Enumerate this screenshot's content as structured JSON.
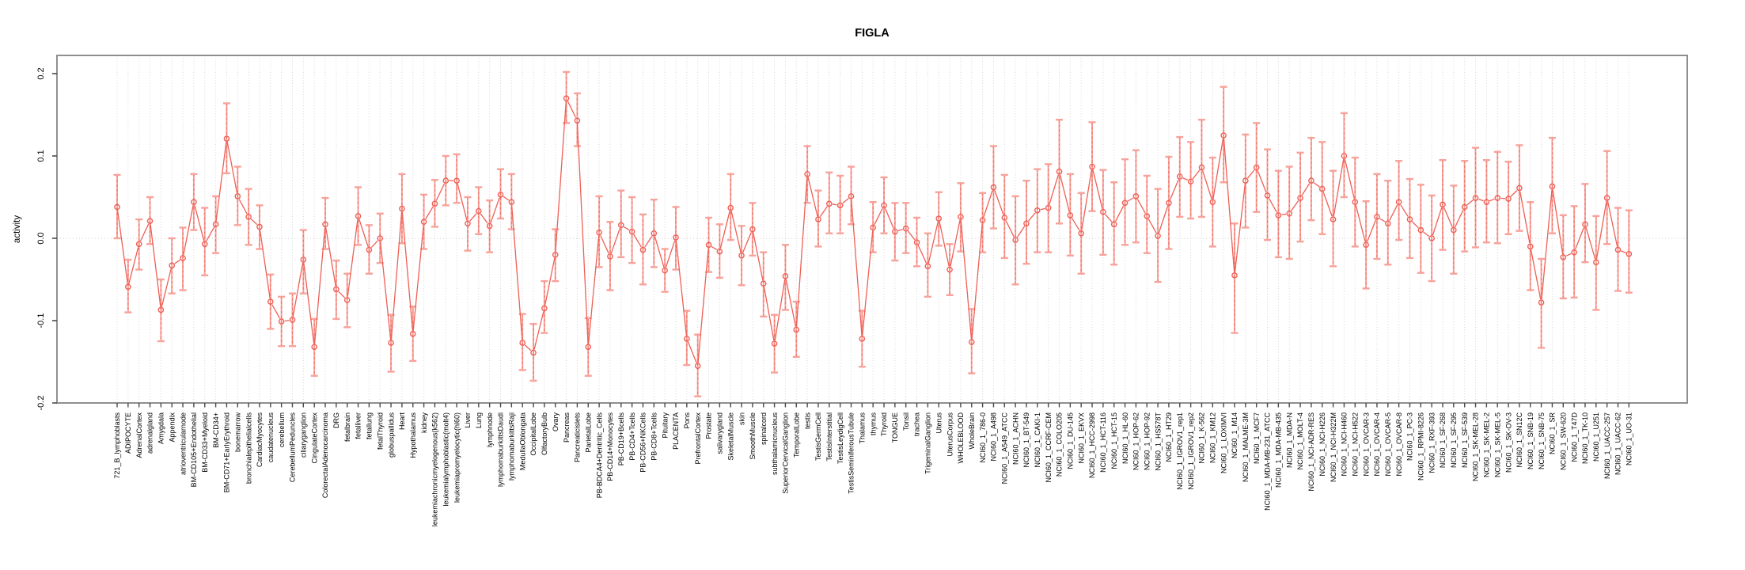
{
  "chart_data": {
    "type": "line",
    "subtype": "points-with-error-bars",
    "title": "FIGLA",
    "xlabel": "",
    "ylabel": "activity",
    "ylim": [
      -0.2,
      0.2
    ],
    "yticks": [
      0.2,
      0.1,
      0.0,
      -0.1,
      -0.2
    ],
    "ytick_labels": [
      "0.2",
      "0.1",
      "0.0",
      "-0.1",
      "-0.2"
    ],
    "grid": {
      "vertical_dotted_per_category": true,
      "zero_dotted_line": true
    },
    "legend": null,
    "marker": "open-circle",
    "colors": {
      "series": "#ee5f55",
      "errorbar": "#f7a29a",
      "box": "#8f8f8f",
      "tick": "#4a4a4a",
      "grid": "#d6d6d6",
      "text": "#000000"
    },
    "categories": [
      "721_B_lymphoblasts",
      "ADIPOCYTE",
      "AdrenalCortex",
      "adrenalgland",
      "Amygdala",
      "Appendix",
      "atrioventricularnode",
      "BM-CD105+Endothelial",
      "BM-CD33+Myeloid",
      "BM-CD34+",
      "BM-CD71+EarlyErythroid",
      "bonemarrow",
      "bronchialepithelialcells",
      "CardiacMyocytes",
      "caudatenucleus",
      "cerebellum",
      "CerebellumPeduncles",
      "ciliaryganglion",
      "CingulateCortex",
      "ColorectalAdenocarcinoma",
      "DRG",
      "fetalbrain",
      "fetalliver",
      "fetallung",
      "fetalThyroid",
      "globuspallidus",
      "Heart",
      "Hypothalamus",
      "kidney",
      "leukemiachronicmyelogenous(k562)",
      "leukemialymphoblastic(molt4)",
      "leukemiapromyelocytic(hl60)",
      "Liver",
      "Lung",
      "lymphnode",
      "lymphomaburkittsDaudi",
      "lymphomaburkittsRaji",
      "MedullaOblongata",
      "OccipitalLobe",
      "OlfactoryBulb",
      "Ovary",
      "Pancreas",
      "Pancreaticislets",
      "ParietalLobe",
      "PB-BDCA4+Dentritic_Cells",
      "PB-CD14+Monocytes",
      "PB-CD19+Bcells",
      "PB-CD4+Tcells",
      "PB-CD56+NKCells",
      "PB-CD8+Tcells",
      "Pituitary",
      "PLACENTA",
      "Pons",
      "PrefrontalCortex",
      "Prostate",
      "salivarygland",
      "SkeletalMuscle",
      "skin",
      "SmoothMuscle",
      "spinalcord",
      "subthalamicnucleus",
      "SuperiorCervicalGanglion",
      "TemporalLobe",
      "testis",
      "TestisGermCell",
      "TestisInterstitial",
      "TestisLeydigCell",
      "TestisSeminiferousTubule",
      "Thalamus",
      "thymus",
      "Thyroid",
      "TONGUE",
      "Tonsil",
      "trachea",
      "TrigeminalGanglion",
      "Uterus",
      "UterusCorpus",
      "WHOLEBLOOD",
      "WholeBrain",
      "NCI60_1_786-0",
      "NCI60_1_A498",
      "NCI60_1_A549_ATCC",
      "NCI60_1_ACHN",
      "NCI60_1_BT-549",
      "NCI60_1_CAKI-1",
      "NCI60_1_CCRF-CEM",
      "NCI60_1_COLO205",
      "NCI60_1_DU-145",
      "NCI60_1_EKVX",
      "NCI60_1_HCC-2998",
      "NCI60_1_HCT-116",
      "NCI60_1_HCT-15",
      "NCI60_1_HL-60",
      "NCI60_1_HOP-62",
      "NCI60_1_HOP-92",
      "NCI60_1_HS578T",
      "NCI60_1_HT29",
      "NCI60_1_IGROV1_rep1",
      "NCI60_1_IGROV1_rep2",
      "NCI60_1_K-562",
      "NCI60_1_KM12",
      "NCI60_1_LOXIMVI",
      "NCI60_1_M14",
      "NCI60_1_MALME-3M",
      "NCI60_1_MCF7",
      "NCI60_1_MDA-MB-231_ATCC",
      "NCI60_1_MDA-MB-435",
      "NCI60_1_MDA-N",
      "NCI60_1_MOLT-4",
      "NCI60_1_NCI-ADR-RES",
      "NCI60_1_NCI-H226",
      "NCI60_1_NCI-H322M",
      "NCI60_1_NCI-H460",
      "NCI60_1_NCI-H522",
      "NCI60_1_OVCAR-3",
      "NCI60_1_OVCAR-4",
      "NCI60_1_OVCAR-5",
      "NCI60_1_OVCAR-8",
      "NCI60_1_PC-3",
      "NCI60_1_RPMI-8226",
      "NCI60_1_RXF-393",
      "NCI60_1_SF-268",
      "NCI60_1_SF-295",
      "NCI60_1_SF-539",
      "NCI60_1_SK-MEL-28",
      "NCI60_1_SK-MEL-2",
      "NCI60_1_SK-MEL-5",
      "NCI60_1_SK-OV-3",
      "NCI60_1_SN12C",
      "NCI60_1_SNB-19",
      "NCI60_1_SNB-75",
      "NCI60_1_SR",
      "NCI60_1_SW-620",
      "NCI60_1_T47D",
      "NCI60_1_TK-10",
      "NCI60_1_U251",
      "NCI60_1_UACC-257",
      "NCI60_1_UACC-62",
      "NCI60_1_UO-31"
    ],
    "series": [
      {
        "name": "activity",
        "values": [
          0.038,
          -0.059,
          -0.007,
          0.021,
          -0.087,
          -0.033,
          -0.024,
          0.044,
          -0.007,
          0.017,
          0.121,
          0.051,
          0.026,
          0.014,
          -0.077,
          -0.101,
          -0.099,
          -0.026,
          -0.132,
          0.017,
          -0.062,
          -0.075,
          0.027,
          -0.014,
          0.0,
          -0.127,
          0.036,
          -0.116,
          0.02,
          0.042,
          0.07,
          0.07,
          0.018,
          0.033,
          0.015,
          0.053,
          0.044,
          -0.127,
          -0.139,
          -0.085,
          -0.02,
          0.17,
          0.143,
          -0.132,
          0.007,
          -0.022,
          0.016,
          0.008,
          -0.014,
          0.006,
          -0.039,
          0.001,
          -0.122,
          -0.155,
          -0.008,
          -0.016,
          0.037,
          -0.021,
          0.011,
          -0.055,
          -0.128,
          -0.046,
          -0.111,
          0.078,
          0.023,
          0.042,
          0.04,
          0.051,
          -0.122,
          0.013,
          0.04,
          0.008,
          0.012,
          -0.005,
          -0.034,
          0.024,
          -0.038,
          0.026,
          -0.126,
          0.022,
          0.062,
          0.025,
          -0.002,
          0.018,
          0.034,
          0.037,
          0.081,
          0.028,
          0.006,
          0.087,
          0.032,
          0.017,
          0.043,
          0.051,
          0.027,
          0.003,
          0.043,
          0.075,
          0.069,
          0.086,
          0.044,
          0.125,
          -0.045,
          0.07,
          0.086,
          0.052,
          0.028,
          0.03,
          0.049,
          0.07,
          0.06,
          0.023,
          0.1,
          0.044,
          -0.008,
          0.026,
          0.018,
          0.044,
          0.023,
          0.01,
          0.0,
          0.041,
          0.01,
          0.038,
          0.049,
          0.044,
          0.049,
          0.048,
          0.061,
          -0.01,
          -0.078,
          0.063,
          -0.023,
          -0.017,
          0.017,
          -0.029,
          0.049,
          -0.014,
          -0.019
        ],
        "err_lo": [
          0.0,
          -0.09,
          -0.038,
          -0.007,
          -0.125,
          -0.067,
          -0.063,
          0.01,
          -0.045,
          -0.018,
          0.079,
          0.016,
          -0.008,
          -0.013,
          -0.11,
          -0.131,
          -0.131,
          -0.067,
          -0.167,
          -0.013,
          -0.098,
          -0.108,
          -0.008,
          -0.043,
          -0.03,
          -0.162,
          -0.006,
          -0.149,
          -0.013,
          0.014,
          0.04,
          0.043,
          -0.015,
          0.005,
          -0.017,
          0.024,
          0.011,
          -0.16,
          -0.173,
          -0.115,
          -0.052,
          0.14,
          0.112,
          -0.167,
          -0.035,
          -0.063,
          -0.023,
          -0.03,
          -0.056,
          -0.035,
          -0.065,
          -0.038,
          -0.154,
          -0.192,
          -0.041,
          -0.048,
          -0.002,
          -0.057,
          -0.021,
          -0.095,
          -0.163,
          -0.087,
          -0.144,
          0.043,
          -0.01,
          0.006,
          0.006,
          0.017,
          -0.156,
          -0.017,
          0.006,
          -0.027,
          -0.018,
          -0.034,
          -0.071,
          -0.009,
          -0.069,
          -0.016,
          -0.164,
          -0.017,
          0.012,
          -0.024,
          -0.056,
          -0.031,
          -0.017,
          -0.017,
          0.018,
          -0.021,
          -0.043,
          0.033,
          -0.02,
          -0.032,
          -0.008,
          -0.005,
          -0.018,
          -0.053,
          -0.013,
          0.026,
          0.024,
          0.026,
          -0.01,
          0.068,
          -0.115,
          0.013,
          0.032,
          -0.002,
          -0.023,
          -0.025,
          -0.004,
          0.022,
          0.005,
          -0.034,
          0.05,
          -0.01,
          -0.061,
          -0.025,
          -0.032,
          -0.002,
          -0.024,
          -0.042,
          -0.052,
          -0.014,
          -0.043,
          -0.016,
          -0.011,
          -0.005,
          -0.006,
          0.005,
          0.009,
          -0.063,
          -0.133,
          0.006,
          -0.073,
          -0.072,
          -0.029,
          -0.087,
          -0.007,
          -0.064,
          -0.066
        ],
        "err_hi": [
          0.077,
          -0.026,
          0.023,
          0.05,
          -0.05,
          0.0,
          0.013,
          0.078,
          0.037,
          0.051,
          0.164,
          0.087,
          0.06,
          0.04,
          -0.044,
          -0.071,
          -0.067,
          0.01,
          -0.098,
          0.049,
          -0.027,
          -0.043,
          0.062,
          0.016,
          0.03,
          -0.093,
          0.078,
          -0.083,
          0.053,
          0.071,
          0.1,
          0.102,
          0.05,
          0.062,
          0.046,
          0.084,
          0.078,
          -0.092,
          -0.104,
          -0.052,
          0.011,
          0.202,
          0.176,
          -0.097,
          0.051,
          0.02,
          0.058,
          0.05,
          0.029,
          0.047,
          -0.013,
          0.038,
          -0.088,
          -0.117,
          0.025,
          0.017,
          0.078,
          0.015,
          0.043,
          -0.017,
          -0.093,
          -0.008,
          -0.077,
          0.112,
          0.058,
          0.08,
          0.076,
          0.087,
          -0.088,
          0.044,
          0.074,
          0.043,
          0.043,
          0.025,
          0.006,
          0.056,
          -0.007,
          0.067,
          -0.086,
          0.055,
          0.112,
          0.077,
          0.051,
          0.07,
          0.084,
          0.09,
          0.144,
          0.078,
          0.055,
          0.141,
          0.083,
          0.068,
          0.096,
          0.107,
          0.076,
          0.06,
          0.099,
          0.123,
          0.117,
          0.144,
          0.098,
          0.184,
          0.018,
          0.126,
          0.14,
          0.108,
          0.082,
          0.087,
          0.104,
          0.122,
          0.117,
          0.082,
          0.152,
          0.098,
          0.045,
          0.078,
          0.07,
          0.094,
          0.072,
          0.065,
          0.052,
          0.095,
          0.064,
          0.094,
          0.11,
          0.095,
          0.105,
          0.093,
          0.113,
          0.044,
          -0.025,
          0.122,
          0.028,
          0.039,
          0.066,
          0.027,
          0.106,
          0.037,
          0.034
        ]
      }
    ]
  }
}
